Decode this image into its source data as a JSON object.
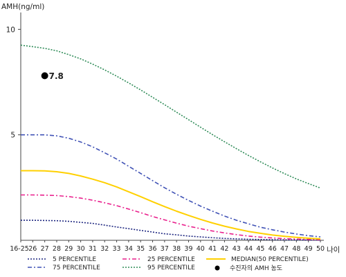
{
  "chart_data": {
    "type": "line",
    "ylabel": "AMH(ng/ml)",
    "xlabel": "나이",
    "ylim": [
      0,
      10.8
    ],
    "yticks": [
      5,
      10
    ],
    "categories": [
      "16-25",
      "26",
      "27",
      "28",
      "29",
      "30",
      "31",
      "32",
      "33",
      "34",
      "35",
      "36",
      "37",
      "38",
      "39",
      "40",
      "41",
      "42",
      "43",
      "44",
      "45",
      "46",
      "47",
      "48",
      "49",
      "50"
    ],
    "series": [
      {
        "name": "5 PERCENTILE",
        "color": "#1a237e",
        "style": "dotted",
        "values": [
          0.95,
          0.95,
          0.94,
          0.93,
          0.9,
          0.85,
          0.8,
          0.72,
          0.63,
          0.55,
          0.47,
          0.39,
          0.31,
          0.26,
          0.2,
          0.16,
          0.12,
          0.09,
          0.07,
          0.05,
          0.04,
          0.03,
          0.02,
          0.02,
          0.01,
          0.01
        ]
      },
      {
        "name": "25 PERCENTILE",
        "color": "#e91e8c",
        "style": "dashdot",
        "values": [
          2.15,
          2.15,
          2.14,
          2.12,
          2.07,
          2.0,
          1.9,
          1.78,
          1.64,
          1.48,
          1.31,
          1.13,
          0.97,
          0.81,
          0.67,
          0.55,
          0.44,
          0.35,
          0.27,
          0.2,
          0.15,
          0.11,
          0.08,
          0.06,
          0.04,
          0.03
        ]
      },
      {
        "name": "MEDIAN(50 PERCENTILE)",
        "color": "#ffd000",
        "style": "solid",
        "values": [
          3.3,
          3.3,
          3.29,
          3.25,
          3.17,
          3.05,
          2.9,
          2.73,
          2.53,
          2.3,
          2.07,
          1.83,
          1.6,
          1.38,
          1.18,
          0.99,
          0.82,
          0.67,
          0.54,
          0.42,
          0.33,
          0.25,
          0.19,
          0.14,
          0.1,
          0.07
        ]
      },
      {
        "name": "75 PERCENTILE",
        "color": "#3f51b5",
        "style": "dashdot",
        "values": [
          5.0,
          5.0,
          5.0,
          4.95,
          4.84,
          4.66,
          4.43,
          4.15,
          3.85,
          3.51,
          3.17,
          2.83,
          2.49,
          2.18,
          1.89,
          1.62,
          1.38,
          1.15,
          0.95,
          0.78,
          0.62,
          0.5,
          0.39,
          0.3,
          0.22,
          0.16
        ]
      },
      {
        "name": "95 PERCENTILE",
        "color": "#2e8b57",
        "style": "dotted",
        "values": [
          9.25,
          9.18,
          9.1,
          8.98,
          8.8,
          8.6,
          8.35,
          8.08,
          7.78,
          7.46,
          7.13,
          6.78,
          6.43,
          6.07,
          5.72,
          5.36,
          5.01,
          4.67,
          4.34,
          4.02,
          3.72,
          3.43,
          3.16,
          2.91,
          2.69,
          2.48
        ]
      }
    ],
    "patient": {
      "name": "수진자의 AMH 농도",
      "x": "27",
      "value": 7.8,
      "label": "7.8",
      "color": "#000000"
    },
    "legend_position": "bottom",
    "grid": false
  }
}
